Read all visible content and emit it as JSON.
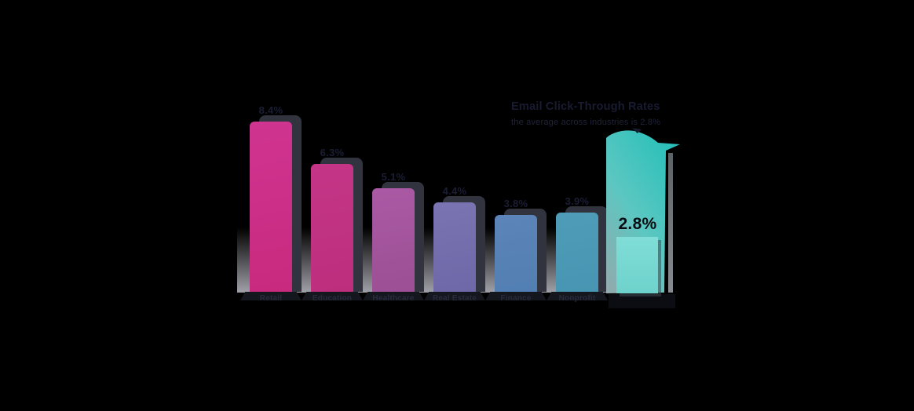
{
  "chart_data": {
    "type": "bar",
    "title": "Email Click-Through Rates",
    "subtitle": "the average across industries is 2.8%",
    "categories": [
      "Retail",
      "Education",
      "Healthcare",
      "Real Estate",
      "Finance",
      "Nonprofit"
    ],
    "values": [
      8.4,
      6.3,
      5.1,
      4.4,
      3.8,
      3.9
    ],
    "value_labels": [
      "8.4%",
      "6.3%",
      "5.1%",
      "4.4%",
      "3.8%",
      "3.9%"
    ],
    "highlight": {
      "label": "2.8%",
      "value": 2.8
    },
    "xlabel": "",
    "ylabel": "",
    "ylim": [
      0,
      9
    ],
    "grid": false,
    "legend": "none",
    "bar_colors": [
      {
        "top": "#cf3490",
        "bottom": "#c82a7e"
      },
      {
        "top": "#c43587",
        "bottom": "#bd2f7d"
      },
      {
        "top": "#aa5aa4",
        "bottom": "#9c4f94"
      },
      {
        "top": "#7a74b2",
        "bottom": "#6f68a8"
      },
      {
        "top": "#5c84b8",
        "bottom": "#527fb3"
      },
      {
        "top": "#4f9cb8",
        "bottom": "#4795b2"
      }
    ],
    "highlight_colors": {
      "swoosh_top": "#2ec6c0",
      "swoosh_bottom": "#98aeb1",
      "bar": "#76d8d2"
    }
  },
  "annotation": {
    "line1": "Email Click-Through Rates",
    "line2": "the average across industries is 2.8%"
  }
}
